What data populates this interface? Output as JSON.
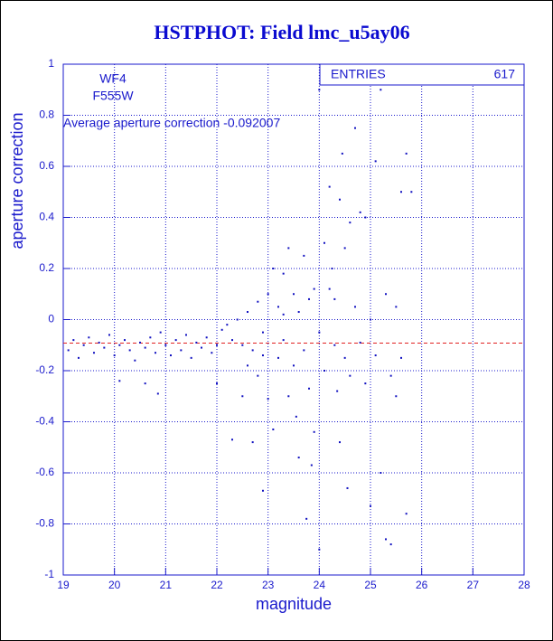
{
  "chart_data": {
    "type": "scatter",
    "title": "HSTPHOT: Field lmc_u5ay06",
    "x_label": "magnitude",
    "y_label": "aperture correction",
    "annotations": [
      "WF4",
      "F555W",
      "Average aperture correction -0.092007"
    ],
    "mean": -0.092007,
    "mean_color": "#e02020",
    "stats": {
      "label": "ENTRIES",
      "value": 617
    },
    "color": "#1010c0",
    "grid": true,
    "xlim": [
      19,
      28
    ],
    "xticks": [
      19,
      20,
      21,
      22,
      23,
      24,
      25,
      26,
      27,
      28
    ],
    "ylim": [
      -1,
      1
    ],
    "yticks": [
      -1,
      -0.8,
      -0.6,
      -0.4,
      -0.2,
      0,
      0.2,
      0.4,
      0.6,
      0.8,
      1
    ],
    "x": [
      19.1,
      19.2,
      19.3,
      19.4,
      19.5,
      19.6,
      19.7,
      19.8,
      19.9,
      20.0,
      20.1,
      20.1,
      20.2,
      20.3,
      20.4,
      20.5,
      20.6,
      20.6,
      20.7,
      20.8,
      20.85,
      20.9,
      21.0,
      21.1,
      21.2,
      21.3,
      21.4,
      21.5,
      21.6,
      21.7,
      21.8,
      21.9,
      22.0,
      22.0,
      22.1,
      22.2,
      22.3,
      22.3,
      22.4,
      22.5,
      22.5,
      22.6,
      22.6,
      22.7,
      22.7,
      22.8,
      22.8,
      22.9,
      22.9,
      23.0,
      23.0,
      23.1,
      23.1,
      23.2,
      23.2,
      23.3,
      23.3,
      23.4,
      23.4,
      23.5,
      23.5,
      23.6,
      23.6,
      23.7,
      23.7,
      23.75,
      23.8,
      23.8,
      23.85,
      23.9,
      23.9,
      24.0,
      24.0,
      24.0,
      24.1,
      24.1,
      24.2,
      24.2,
      24.3,
      24.3,
      24.4,
      24.4,
      24.45,
      24.5,
      24.5,
      24.55,
      24.6,
      24.6,
      24.7,
      24.7,
      24.8,
      24.8,
      24.9,
      24.9,
      25.0,
      25.0,
      25.1,
      25.1,
      25.2,
      25.2,
      25.3,
      25.3,
      25.4,
      25.4,
      25.5,
      25.5,
      25.6,
      25.6,
      25.7,
      25.7,
      25.8,
      24.35,
      24.25,
      23.55,
      22.9,
      23.3
    ],
    "values": [
      -0.12,
      -0.08,
      -0.15,
      -0.1,
      -0.07,
      -0.13,
      -0.09,
      -0.11,
      -0.06,
      -0.14,
      -0.1,
      -0.24,
      -0.08,
      -0.12,
      -0.16,
      -0.09,
      -0.11,
      -0.25,
      -0.07,
      -0.13,
      -0.29,
      -0.05,
      -0.1,
      -0.14,
      -0.08,
      -0.12,
      -0.06,
      -0.15,
      -0.09,
      -0.11,
      -0.07,
      -0.13,
      -0.1,
      -0.25,
      -0.04,
      -0.02,
      -0.08,
      -0.47,
      0.0,
      -0.1,
      -0.3,
      0.03,
      -0.18,
      -0.12,
      -0.48,
      -0.22,
      0.07,
      -0.67,
      -0.05,
      0.1,
      -0.31,
      0.2,
      -0.43,
      -0.15,
      0.05,
      0.18,
      -0.08,
      -0.3,
      0.28,
      0.1,
      -0.18,
      0.03,
      -0.54,
      0.25,
      -0.12,
      -0.78,
      0.08,
      -0.27,
      -0.57,
      0.12,
      -0.44,
      0.9,
      -0.9,
      -0.05,
      0.3,
      -0.2,
      0.52,
      0.12,
      -0.1,
      0.08,
      0.47,
      -0.48,
      0.65,
      -0.15,
      0.28,
      -0.66,
      0.38,
      -0.22,
      0.75,
      0.05,
      -0.09,
      0.42,
      0.4,
      -0.25,
      -0.73,
      0.0,
      -0.14,
      0.62,
      0.9,
      -0.6,
      0.1,
      -0.86,
      -0.22,
      -0.88,
      0.05,
      -0.3,
      0.5,
      -0.15,
      0.65,
      -0.76,
      0.5,
      -0.28,
      0.2,
      -0.38,
      -0.14,
      0.02
    ]
  }
}
